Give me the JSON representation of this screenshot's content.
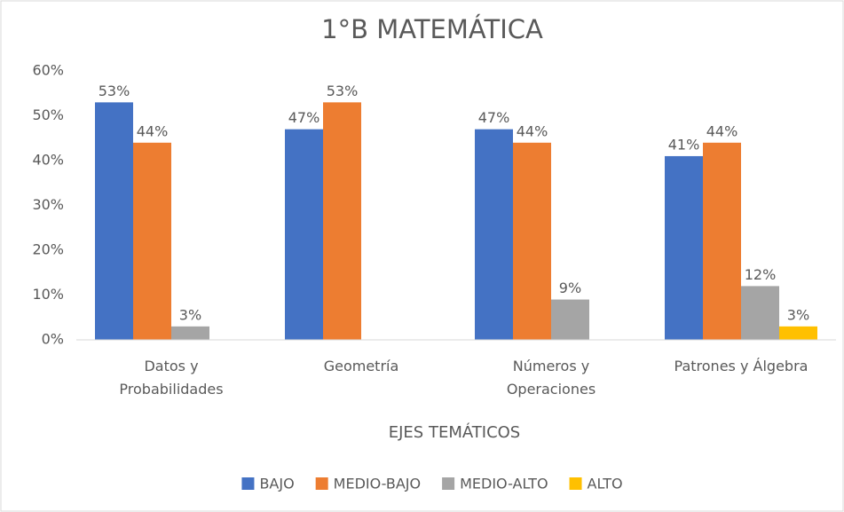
{
  "chart_data": {
    "type": "bar",
    "title": "1°B MATEMÁTICA",
    "x_label": "EJES TEMÁTICOS",
    "categories": [
      "Datos y Probabilidades",
      "Geometría",
      "Números y Operaciones",
      "Patrones y Álgebra"
    ],
    "series": [
      {
        "name": "BAJO",
        "color": "#4472c4",
        "values": [
          53,
          47,
          47,
          41
        ],
        "value_labels": [
          "53%",
          "47%",
          "47%",
          "41%"
        ]
      },
      {
        "name": "MEDIO-BAJO",
        "color": "#ed7d31",
        "values": [
          44,
          53,
          44,
          44
        ],
        "value_labels": [
          "44%",
          "53%",
          "44%",
          "44%"
        ]
      },
      {
        "name": "MEDIO-ALTO",
        "color": "#a5a5a5",
        "values": [
          3,
          null,
          9,
          12
        ],
        "value_labels": [
          "3%",
          null,
          "9%",
          "12%"
        ]
      },
      {
        "name": "ALTO",
        "color": "#ffc000",
        "values": [
          null,
          null,
          null,
          3
        ],
        "value_labels": [
          null,
          null,
          null,
          "3%"
        ]
      }
    ],
    "ylim": [
      0,
      60
    ],
    "yticks": [
      {
        "value": 0,
        "label": "0%"
      },
      {
        "value": 10,
        "label": "10%"
      },
      {
        "value": 20,
        "label": "20%"
      },
      {
        "value": 30,
        "label": "30%"
      },
      {
        "value": 40,
        "label": "40%"
      },
      {
        "value": 50,
        "label": "50%"
      },
      {
        "value": 60,
        "label": "60%"
      }
    ],
    "grid": false,
    "legend": "bottom"
  }
}
